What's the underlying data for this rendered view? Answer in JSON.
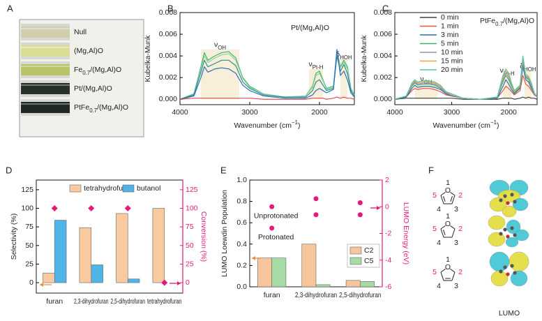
{
  "panel_a": {
    "panel": "A",
    "samples": [
      {
        "label": [
          {
            "t": "Null"
          }
        ],
        "color": "#cfcfae"
      },
      {
        "label": [
          {
            "t": "(Mg,Al)O"
          }
        ],
        "color": "#d9dc92"
      },
      {
        "label": [
          {
            "t": "Fe"
          },
          {
            "sub": "0.7"
          },
          {
            "t": "/(Mg,Al)O"
          }
        ],
        "color": "#b9c46a"
      },
      {
        "label": [
          {
            "t": "Pt/(Mg,Al)O"
          }
        ],
        "color": "#27302a"
      },
      {
        "label": [
          {
            "t": "PtFe"
          },
          {
            "sub": "0.7"
          },
          {
            "t": "/(Mg,Al)O"
          }
        ],
        "color": "#1f2824"
      }
    ]
  },
  "chart_data": [
    {
      "type": "line",
      "panel": "B",
      "title": [
        {
          "t": "Pt/(Mg,Al)O"
        }
      ],
      "x_label": [
        {
          "t": "Wavenumber (cm"
        },
        {
          "sup": "−1"
        },
        {
          "t": ")"
        }
      ],
      "y_label": "Kubelka-Munk",
      "x": [
        4000,
        3800,
        3700,
        3650,
        3600,
        3500,
        3400,
        3300,
        3200,
        3100,
        3000,
        2800,
        2500,
        2200,
        2100,
        2050,
        2000,
        1950,
        1900,
        1800,
        1750,
        1700,
        1650,
        1600,
        1550,
        1500
      ],
      "xlim": [
        4000,
        1500
      ],
      "xticks": [
        4000,
        3000,
        2000
      ],
      "ylim": [
        -0.0005,
        0.008
      ],
      "yticks": [
        {
          "value": 0,
          "label": "0.000"
        },
        {
          "value": 0.002,
          "label": "0.002"
        },
        {
          "value": 0.004,
          "label": "0.004"
        },
        {
          "value": 0.006,
          "label": "0.006"
        },
        {
          "value": 0.008,
          "label": "0.008"
        }
      ],
      "spans": [
        {
          "x": [
            3700,
            3150
          ],
          "top": 0.0046,
          "label": [
            {
              "t": "ν"
            },
            {
              "sub": "OH"
            }
          ]
        },
        {
          "x": [
            2150,
            1950
          ],
          "top": 0.0028,
          "label": [
            {
              "t": "ν"
            },
            {
              "sub": "Pt-H"
            }
          ]
        },
        {
          "x": [
            1700,
            1600
          ],
          "top": 0.0037,
          "label": [
            {
              "t": "δ"
            },
            {
              "sub": "HOH"
            }
          ]
        }
      ],
      "series": [
        {
          "color": "#3cb371",
          "values": [
            0,
            0.0005,
            0.003,
            0.0043,
            0.0036,
            0.004,
            0.0043,
            0.0044,
            0.0038,
            0.002,
            0.0012,
            0.0005,
            0.0002,
            0.0003,
            0.0012,
            0.0024,
            0.0026,
            0.0018,
            0.001,
            0.0012,
            0.0044,
            0.003,
            0.0036,
            0.003,
            0.001,
            0.0004
          ]
        },
        {
          "color": "#8fd39c",
          "values": [
            0,
            0.0004,
            0.0028,
            0.004,
            0.0034,
            0.0038,
            0.0041,
            0.0042,
            0.0036,
            0.0019,
            0.0011,
            0.0005,
            0.0002,
            0.0003,
            0.0011,
            0.0022,
            0.0024,
            0.0017,
            0.0009,
            0.0011,
            0.0042,
            0.0029,
            0.0034,
            0.0028,
            0.0009,
            0.0004
          ]
        },
        {
          "color": "#2a8f8c",
          "values": [
            0,
            0.0004,
            0.0025,
            0.0036,
            0.003,
            0.0033,
            0.0036,
            0.0036,
            0.0031,
            0.0016,
            0.001,
            0.0004,
            0.0002,
            0.0002,
            0.0008,
            0.0016,
            0.0018,
            0.0013,
            0.0008,
            0.001,
            0.004,
            0.0026,
            0.0032,
            0.0024,
            0.0008,
            0.0003
          ]
        },
        {
          "color": "#2f6db5",
          "values": [
            0,
            0.0003,
            0.002,
            0.003,
            0.0025,
            0.0028,
            0.0029,
            0.0028,
            0.0024,
            0.0013,
            0.0008,
            0.0003,
            0.0001,
            0.0001,
            0.0004,
            0.0008,
            0.001,
            0.0008,
            0.0006,
            0.0009,
            0.0046,
            0.0022,
            0.0026,
            0.0018,
            0.0006,
            0.0002
          ]
        },
        {
          "color": "#e05050",
          "values": [
            0,
            0.0001,
            0.0001,
            0.0001,
            0.0001,
            0.0001,
            0.0001,
            0.0001,
            0.0001,
            0.0001,
            0.0001,
            0,
            0,
            0,
            0.0001,
            0.0001,
            0.0001,
            0.0001,
            0,
            0.0001,
            0.0002,
            0.0001,
            0.0002,
            0.0001,
            0.0001,
            0
          ]
        }
      ]
    },
    {
      "type": "line",
      "panel": "C",
      "title": [
        {
          "t": "PtFe"
        },
        {
          "sub": "0.7"
        },
        {
          "t": "/(Mg,Al)O"
        }
      ],
      "x_label": [
        {
          "t": "Wavenumber (cm"
        },
        {
          "sup": "−1"
        },
        {
          "t": ")"
        }
      ],
      "y_label": "Kubelka-Munk",
      "x": [
        4000,
        3800,
        3700,
        3650,
        3600,
        3500,
        3400,
        3300,
        3200,
        3100,
        3000,
        2800,
        2500,
        2200,
        2100,
        2050,
        2000,
        1950,
        1900,
        1800,
        1750,
        1700,
        1650,
        1600,
        1550,
        1500
      ],
      "xlim": [
        4000,
        1500
      ],
      "xticks": [
        4000,
        3000,
        2000
      ],
      "ylim": [
        -0.0005,
        0.008
      ],
      "yticks": [
        {
          "value": 0,
          "label": "0.000"
        },
        {
          "value": 0.002,
          "label": "0.002"
        },
        {
          "value": 0.004,
          "label": "0.004"
        },
        {
          "value": 0.006,
          "label": "0.006"
        },
        {
          "value": 0.008,
          "label": "0.008"
        }
      ],
      "legend": "upper left",
      "spans": [
        {
          "x": [
            3650,
            3250
          ],
          "top": 0.0014,
          "label": [
            {
              "t": "ν"
            },
            {
              "sub": "OH"
            }
          ]
        },
        {
          "x": [
            2100,
            1950
          ],
          "top": 0.0022,
          "label": [
            {
              "t": "ν"
            },
            {
              "sub": "Pt-H"
            }
          ]
        },
        {
          "x": [
            1720,
            1600
          ],
          "top": 0.0026,
          "label": [
            {
              "t": "δ"
            },
            {
              "sub": "HOH"
            }
          ]
        }
      ],
      "series": [
        {
          "name": "0 min",
          "color": "#404040",
          "values": [
            0,
            0.0001,
            0.0001,
            0.0001,
            0.0001,
            0.0001,
            0.0001,
            0.0001,
            0.0001,
            0.0001,
            0.0001,
            0,
            0,
            0,
            0.0001,
            0.0001,
            0.0001,
            0.0001,
            0,
            0.0001,
            0.0002,
            0.0001,
            0.0002,
            0.0001,
            0.0001,
            0
          ]
        },
        {
          "name": "1 min",
          "color": "#e8553f",
          "values": [
            0,
            0.0002,
            0.0008,
            0.001,
            0.0009,
            0.001,
            0.001,
            0.0009,
            0.0007,
            0.0004,
            0.0003,
            0.0001,
            0,
            0.0001,
            0.0008,
            0.0012,
            0.001,
            0.0007,
            0.0004,
            0.0008,
            0.0022,
            0.0014,
            0.0012,
            0.0008,
            0.0004,
            0.0002
          ]
        },
        {
          "name": "3 min",
          "color": "#2f6db5",
          "values": [
            0,
            0.0002,
            0.001,
            0.0013,
            0.0011,
            0.0012,
            0.0012,
            0.0011,
            0.0009,
            0.0005,
            0.0003,
            0.0001,
            0,
            0.0001,
            0.0012,
            0.0018,
            0.0014,
            0.0009,
            0.0005,
            0.001,
            0.003,
            0.0018,
            0.0016,
            0.001,
            0.0005,
            0.0002
          ]
        },
        {
          "name": "5 min",
          "color": "#3cb371",
          "values": [
            0,
            0.0003,
            0.0012,
            0.0015,
            0.0013,
            0.0014,
            0.0014,
            0.0013,
            0.001,
            0.0006,
            0.0004,
            0.0001,
            0,
            0.0002,
            0.0016,
            0.0022,
            0.0018,
            0.0012,
            0.0006,
            0.0011,
            0.0034,
            0.002,
            0.0018,
            0.0012,
            0.0005,
            0.0002
          ]
        },
        {
          "name": "10 min",
          "color": "#9a8fb0",
          "values": [
            0,
            0.0003,
            0.0013,
            0.0016,
            0.0014,
            0.0015,
            0.0015,
            0.0014,
            0.0011,
            0.0006,
            0.0004,
            0.0001,
            0,
            0.0002,
            0.0018,
            0.0024,
            0.002,
            0.0013,
            0.0007,
            0.0012,
            0.0036,
            0.0021,
            0.0019,
            0.0013,
            0.0005,
            0.0002
          ]
        },
        {
          "name": "15 min",
          "color": "#f0a040",
          "values": [
            0,
            0.0003,
            0.0014,
            0.0017,
            0.0015,
            0.0016,
            0.0016,
            0.0015,
            0.0012,
            0.0007,
            0.0004,
            0.0001,
            0,
            0.0002,
            0.002,
            0.0026,
            0.0022,
            0.0014,
            0.0007,
            0.0012,
            0.0038,
            0.0022,
            0.002,
            0.0014,
            0.0006,
            0.0002
          ]
        },
        {
          "name": "20 min",
          "color": "#4fc7ae",
          "values": [
            0,
            0.0003,
            0.0015,
            0.0018,
            0.0016,
            0.0017,
            0.0017,
            0.0016,
            0.0013,
            0.0007,
            0.0005,
            0.0001,
            0,
            0.0002,
            0.0022,
            0.0028,
            0.0024,
            0.0015,
            0.0008,
            0.0013,
            0.004,
            0.0023,
            0.0021,
            0.0015,
            0.0006,
            0.0002
          ]
        }
      ]
    },
    {
      "type": "bar",
      "panel": "D",
      "y_label": "Selectivity (%)",
      "y2_label": "Conversion (%)",
      "y2_color": "#e6197a",
      "categories": [
        "furan",
        "2,3-dihydrofuran",
        "2,5-dihydrofuran",
        "tetrahydrofuran"
      ],
      "ylim": [
        -14,
        138
      ],
      "yticks": [
        0,
        25,
        50,
        75,
        100,
        125
      ],
      "y2lim": [
        -14,
        138
      ],
      "y2ticks": [
        0,
        25,
        50,
        75,
        100,
        125
      ],
      "legend": "upper center",
      "series": [
        {
          "name": "tetrahydrofuran",
          "color": "#f9c9a0",
          "values": [
            13,
            74,
            93,
            100
          ]
        },
        {
          "name": "butanol",
          "color": "#4fb4e8",
          "values": [
            84,
            24,
            5,
            null
          ]
        },
        {
          "color": "#e6197a",
          "axis": "y2",
          "marker": "diamond",
          "values": [
            100,
            100,
            100,
            0
          ]
        }
      ]
    },
    {
      "type": "bar",
      "panel": "E",
      "y_label": "LUMO Loewdin Population",
      "y2_label": "LUMO Energy (eV)",
      "y2_color": "#e6197a",
      "categories": [
        "furan",
        "2,3-dihydrofuran",
        "2,5-dihydrofuran"
      ],
      "ylim": [
        0,
        1
      ],
      "yticks": [
        {
          "value": 0,
          "label": "0.0"
        },
        {
          "value": 0.2,
          "label": "0.2"
        },
        {
          "value": 0.4,
          "label": "0.4"
        },
        {
          "value": 0.6,
          "label": "0.6"
        },
        {
          "value": 0.8,
          "label": "0.8"
        },
        {
          "value": 1,
          "label": "1.0"
        }
      ],
      "y2lim": [
        -6,
        2
      ],
      "y2ticks": [
        -6,
        -4,
        -2,
        0,
        2
      ],
      "legend": "lower right",
      "series": [
        {
          "name": "C2",
          "color": "#f7c59b",
          "values": [
            0.27,
            0.4,
            0.06
          ]
        },
        {
          "name": "C5",
          "color": "#a6dba6",
          "values": [
            0.27,
            0.02,
            0.05
          ]
        },
        {
          "name": "Unprotonated",
          "color": "#e6197a",
          "axis": "y2",
          "marker": "circle",
          "values": [
            0,
            0.6,
            0.3
          ]
        },
        {
          "name": "Protonated",
          "color": "#e6197a",
          "axis": "y2",
          "marker": "circle",
          "values": [
            -1.6,
            -0.6,
            -0.6
          ]
        }
      ]
    }
  ],
  "panel_f": {
    "panel": "F",
    "caption": "LUMO",
    "molecules": [
      {
        "heteroatom": "O",
        "atoms": [
          "1",
          "2",
          "3",
          "4",
          "5"
        ]
      },
      {
        "heteroatom": "O",
        "atoms": [
          "1",
          "2",
          "3",
          "4",
          "5"
        ]
      },
      {
        "heteroatom": "O",
        "atoms": [
          "1",
          "2",
          "3",
          "4",
          "5"
        ]
      }
    ]
  }
}
